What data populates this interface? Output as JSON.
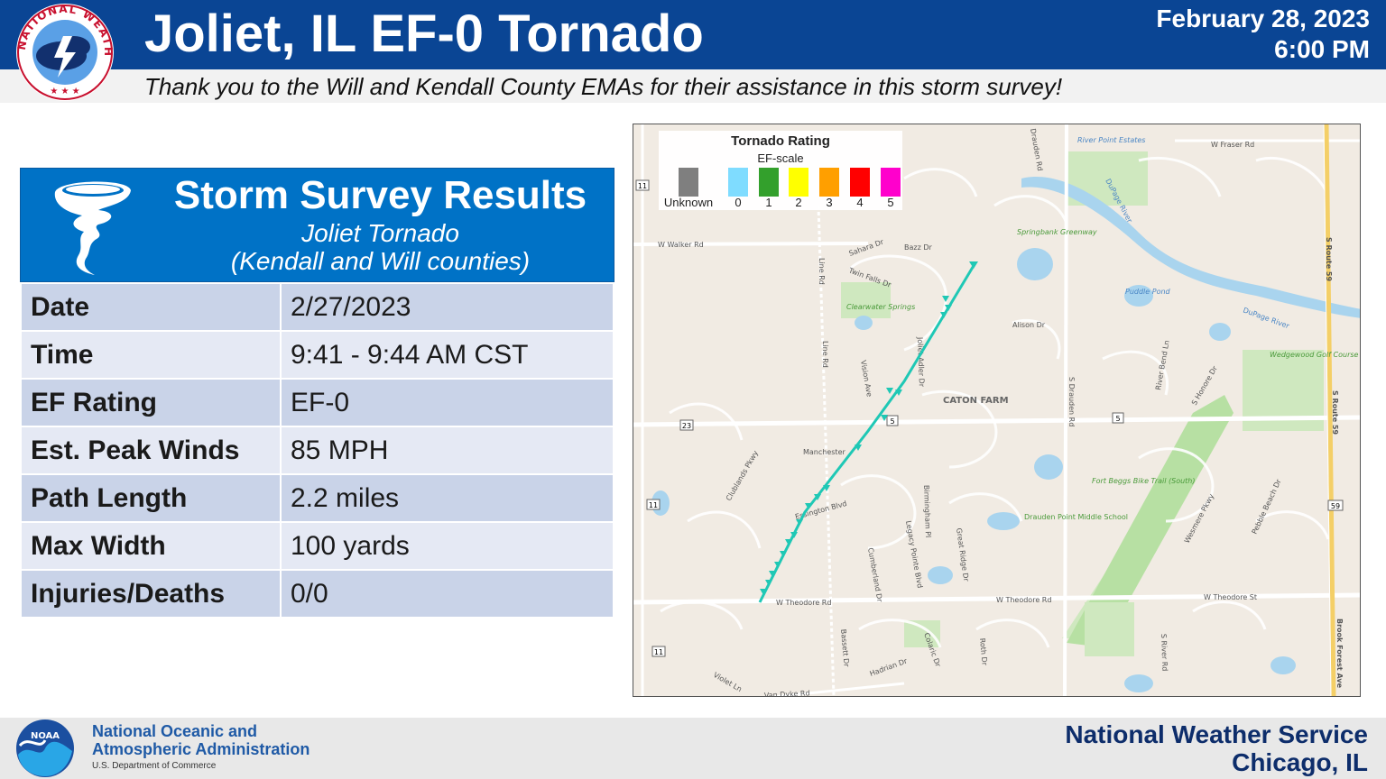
{
  "header": {
    "title": "Joliet, IL EF-0 Tornado",
    "date": "February 28, 2023",
    "time": "6:00 PM",
    "thanks": "Thank you to the Will and Kendall County EMAs for their assistance in this storm survey!",
    "logo_text": "NATIONAL WEATHER SERVICE",
    "colors": {
      "bar": "#0a4594",
      "subbar": "#f2f2f2"
    }
  },
  "survey": {
    "title": "Storm Survey Results",
    "subtitle_line1": "Joliet Tornado",
    "subtitle_line2": "(Kendall and Will counties)",
    "icon": "tornado-icon",
    "rows": [
      {
        "label": "Date",
        "value": "2/27/2023"
      },
      {
        "label": "Time",
        "value": "9:41 - 9:44 AM CST"
      },
      {
        "label": "EF Rating",
        "value": "EF-0"
      },
      {
        "label": "Est. Peak Winds",
        "value": "85 MPH"
      },
      {
        "label": "Path Length",
        "value": "2.2 miles"
      },
      {
        "label": "Max Width",
        "value": "100 yards"
      },
      {
        "label": "Injuries/Deaths",
        "value": "0/0"
      }
    ]
  },
  "map": {
    "legend": {
      "title": "Tornado Rating",
      "subtitle": "EF-scale",
      "items": [
        {
          "label": "Unknown",
          "color": "#7f7f7f"
        },
        {
          "label": "0",
          "color": "#7fdcff"
        },
        {
          "label": "1",
          "color": "#33a02c"
        },
        {
          "label": "2",
          "color": "#ffff00"
        },
        {
          "label": "3",
          "color": "#ff9f00"
        },
        {
          "label": "4",
          "color": "#ff0000"
        },
        {
          "label": "5",
          "color": "#ff00cc"
        }
      ]
    },
    "track_color": "#1fc8b5",
    "labels": {
      "w_walker": "W Walker Rd",
      "sahara": "Sahara Dr",
      "bazz": "Bazz Dr",
      "twin_falls": "Twin Falls Dr",
      "clearwater": "Clearwater Springs",
      "line_rd1": "Line Rd",
      "line_rd2": "Line Rd",
      "vision": "Vision Ave",
      "joliet_dr": "Joliet Adler Dr",
      "caton": "CATON FARM",
      "alison": "Alison Dr",
      "drauden": "S Drauden Rd",
      "drauden_top": "Drauden Rd",
      "river_point": "River Point Estates",
      "w_fraser": "W Fraser Rd",
      "dupage1": "DuPage River",
      "dupage2": "DuPage River",
      "springbank": "Springbank Greenway",
      "puddle": "Puddle Pond",
      "wedgewood": "Wedgewood Golf Course",
      "s_route59a": "S Route 59",
      "s_route59b": "S Route 59",
      "river_bend": "River Bend Ln",
      "honore": "S Honore Dr",
      "manchester": "Manchester",
      "clublands": "Clublands Pkwy",
      "essington": "Essington Blvd",
      "birmingham": "Birmingham Pl",
      "legacy": "Legacy Pointe Blvd",
      "great_ridge": "Great Ridge Dr",
      "cumberland": "Cumberland Dr",
      "fort_beggs": "Fort Beggs Bike Trail (South)",
      "drauden_school": "Drauden Point Middle School",
      "wesmere": "Wesmere Pkwy",
      "pebble": "Pebble Beach Dr",
      "theodore1": "W Theodore Rd",
      "theodore2": "W Theodore Rd",
      "theodore3": "W Theodore St",
      "bassett": "Bassett Dr",
      "hadrian": "Hadrian Dr",
      "colaric": "Colaric Dr",
      "roth": "Roth Dr",
      "river_rd": "S River Rd",
      "violet": "Violet Ln",
      "van_dyke": "Van Dyke Rd",
      "brook_forest": "Brook Forest Ave",
      "shield_11a": "11",
      "shield_11b": "11",
      "shield_11c": "11",
      "shield_23": "23",
      "shield_5a": "5",
      "shield_5b": "5",
      "shield_59": "59"
    }
  },
  "footer": {
    "noaa_line1": "National Oceanic and",
    "noaa_line2": "Atmospheric Administration",
    "noaa_line3": "U.S. Department of Commerce",
    "noaa_logo_text": "NOAA",
    "right_line1": "National Weather Service",
    "right_line2": "Chicago, IL"
  }
}
